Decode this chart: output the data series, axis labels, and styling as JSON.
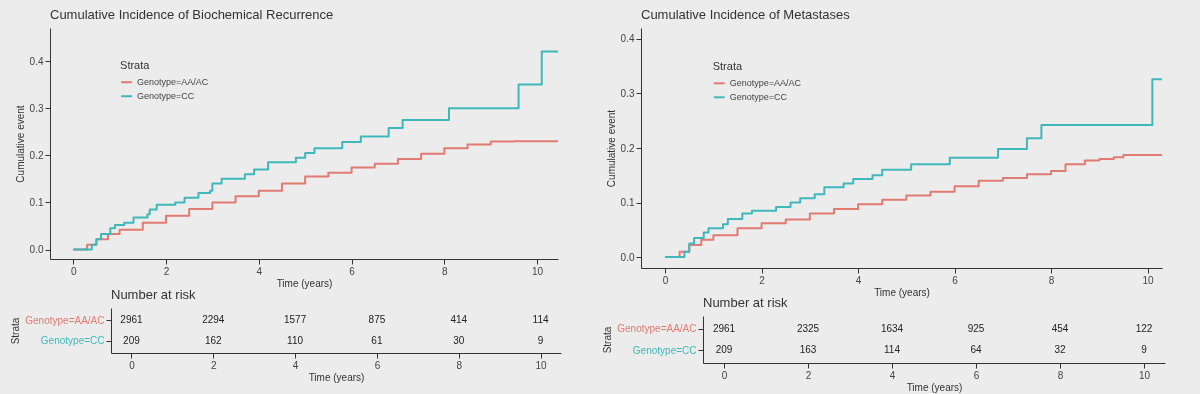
{
  "chart_data": [
    {
      "type": "step",
      "title": "Cumulative Incidence of Biochemical Recurrence",
      "xlabel": "Time (years)",
      "ylabel": "Cumulative event",
      "legend_title": "Strata",
      "legend": "top left",
      "xlim": [
        -0.5,
        10.45
      ],
      "ylim": [
        -0.02,
        0.47
      ],
      "xticks": [
        0,
        2,
        4,
        6,
        8,
        10
      ],
      "yticks": [
        {
          "value": 0,
          "label": "0.0"
        },
        0.1,
        0.2,
        0.3,
        0.4
      ],
      "series": [
        {
          "name": "Genotype=AA/AC",
          "color": "#e07b72",
          "x": [
            0,
            0.2,
            0.3,
            0.5,
            0.75,
            1,
            1.5,
            2,
            2.5,
            3,
            3.5,
            4,
            4.5,
            5,
            5.5,
            6,
            6.5,
            7,
            7.5,
            8,
            8.5,
            9,
            9.5,
            10.45
          ],
          "values": [
            0,
            0,
            0.01,
            0.022,
            0.033,
            0.042,
            0.057,
            0.072,
            0.086,
            0.1,
            0.113,
            0.125,
            0.14,
            0.155,
            0.163,
            0.174,
            0.182,
            0.192,
            0.203,
            0.215,
            0.223,
            0.229,
            0.23,
            0.23
          ]
        },
        {
          "name": "Genotype=CC",
          "color": "#3fb8bb",
          "x": [
            0,
            0.35,
            0.4,
            0.5,
            0.6,
            0.8,
            0.9,
            1.1,
            1.3,
            1.6,
            1.65,
            1.8,
            2.2,
            2.4,
            2.7,
            2.95,
            3,
            3.2,
            3.7,
            3.9,
            4.2,
            4.8,
            5,
            5.2,
            5.8,
            6.2,
            6.8,
            7.1,
            8.1,
            9.6,
            10.1,
            10.45
          ],
          "values": [
            0,
            0,
            0.01,
            0.022,
            0.033,
            0.045,
            0.052,
            0.057,
            0.068,
            0.075,
            0.085,
            0.095,
            0.1,
            0.11,
            0.12,
            0.125,
            0.14,
            0.15,
            0.16,
            0.17,
            0.185,
            0.195,
            0.205,
            0.215,
            0.228,
            0.24,
            0.258,
            0.275,
            0.3,
            0.35,
            0.42,
            0.42
          ]
        }
      ]
    },
    {
      "type": "heatmap",
      "title": "Number at risk",
      "xlabel": "Time (years)",
      "ylabel": "Strata",
      "categories": [
        "0",
        "2",
        "4",
        "6",
        "8",
        "10"
      ],
      "y_categories": [
        "Genotype=AA/AC",
        "Genotype=CC"
      ],
      "data_labels": true,
      "cells": [
        [
          2961,
          2294,
          1577,
          875,
          414,
          114
        ],
        [
          209,
          162,
          110,
          61,
          30,
          9
        ]
      ]
    },
    {
      "type": "step",
      "title": "Cumulative Incidence of Metastases",
      "xlabel": "Time (years)",
      "ylabel": "Cumulative event",
      "legend_title": "Strata",
      "legend": "top left",
      "xlim": [
        -0.5,
        10.3
      ],
      "ylim": [
        -0.02,
        0.42
      ],
      "xticks": [
        0,
        2,
        4,
        6,
        8,
        10
      ],
      "yticks": [
        {
          "value": 0,
          "label": "0.0"
        },
        0.1,
        0.2,
        0.3,
        0.4
      ],
      "series": [
        {
          "name": "Genotype=AA/AC",
          "color": "#e07b72",
          "x": [
            0,
            0.2,
            0.3,
            0.5,
            0.75,
            1,
            1.5,
            2,
            2.5,
            3,
            3.5,
            4,
            4.5,
            5,
            5.5,
            6,
            6.5,
            7,
            7.5,
            8,
            8.3,
            8.7,
            9,
            9.3,
            9.5,
            10.3
          ],
          "values": [
            0,
            0,
            0.01,
            0.022,
            0.032,
            0.04,
            0.053,
            0.062,
            0.069,
            0.08,
            0.088,
            0.097,
            0.105,
            0.113,
            0.12,
            0.13,
            0.14,
            0.145,
            0.152,
            0.158,
            0.17,
            0.177,
            0.18,
            0.183,
            0.187,
            0.187
          ]
        },
        {
          "name": "Genotype=CC",
          "color": "#3fb8bb",
          "x": [
            0,
            0.35,
            0.4,
            0.5,
            0.6,
            0.8,
            0.9,
            1.2,
            1.3,
            1.6,
            1.8,
            2.3,
            2.6,
            2.8,
            3.1,
            3.3,
            3.7,
            3.9,
            4.3,
            4.5,
            5.1,
            5.9,
            6.9,
            7.5,
            7.8,
            10.1,
            10.3
          ],
          "values": [
            0,
            0,
            0.01,
            0.025,
            0.035,
            0.045,
            0.053,
            0.06,
            0.07,
            0.08,
            0.085,
            0.092,
            0.1,
            0.108,
            0.115,
            0.128,
            0.135,
            0.143,
            0.15,
            0.16,
            0.17,
            0.182,
            0.198,
            0.218,
            0.242,
            0.326,
            0.326
          ]
        }
      ]
    },
    {
      "type": "heatmap",
      "title": "Number at risk",
      "xlabel": "Time (years)",
      "ylabel": "Strata",
      "categories": [
        "0",
        "2",
        "4",
        "6",
        "8",
        "10"
      ],
      "y_categories": [
        "Genotype=AA/AC",
        "Genotype=CC"
      ],
      "data_labels": true,
      "cells": [
        [
          2961,
          2325,
          1634,
          925,
          454,
          122
        ],
        [
          209,
          163,
          114,
          64,
          32,
          9
        ]
      ]
    }
  ]
}
